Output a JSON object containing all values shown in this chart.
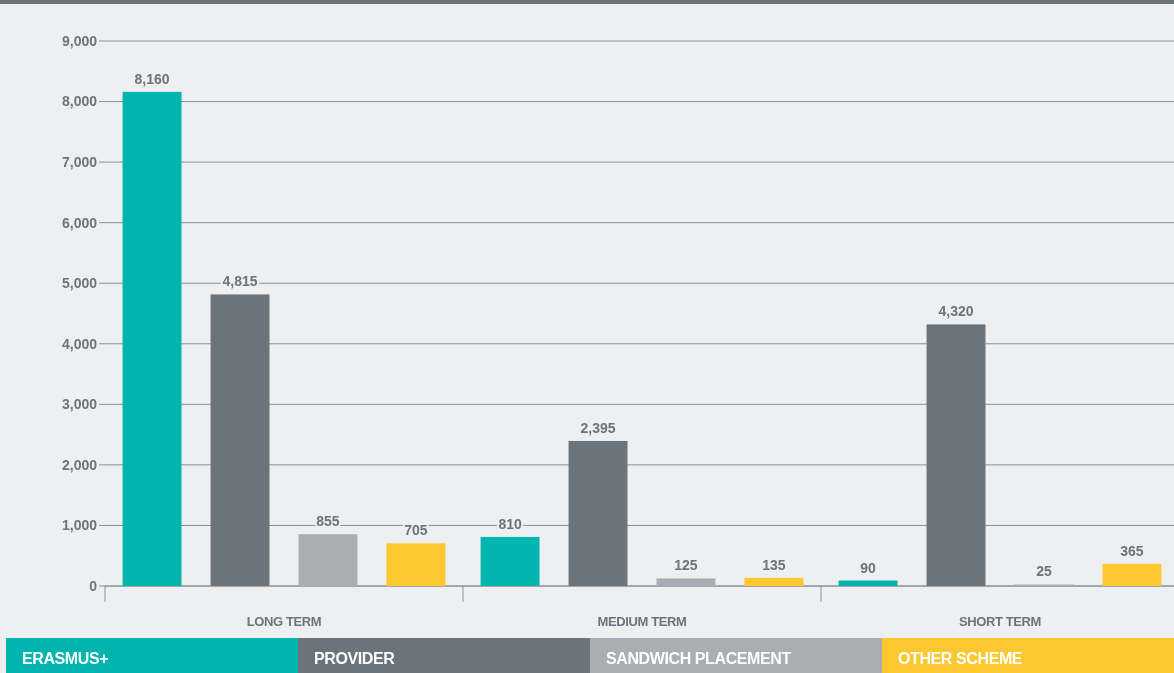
{
  "chart_data": {
    "type": "bar",
    "categories": [
      "LONG TERM",
      "MEDIUM TERM",
      "SHORT TERM"
    ],
    "series": [
      {
        "name": "ERASMUS+",
        "color": "#00b5ad",
        "values": [
          8160,
          810,
          90
        ],
        "value_labels": [
          "8,160",
          "810",
          "90"
        ]
      },
      {
        "name": "PROVIDER",
        "color": "#6b747b",
        "values": [
          4815,
          2395,
          4320
        ],
        "value_labels": [
          "4,815",
          "2,395",
          "4,320"
        ]
      },
      {
        "name": "SANDWICH PLACEMENT",
        "color": "#a8aeb4",
        "values": [
          855,
          125,
          25
        ],
        "value_labels": [
          "855",
          "125",
          "25"
        ]
      },
      {
        "name": "OTHER SCHEME",
        "color": "#fdc82f",
        "values": [
          705,
          135,
          365
        ],
        "value_labels": [
          "705",
          "135",
          "365"
        ]
      }
    ],
    "ylim": [
      0,
      9000
    ],
    "yticks": [
      {
        "value": 0,
        "label": "0"
      },
      {
        "value": 1000,
        "label": "1,000"
      },
      {
        "value": 2000,
        "label": "2,000"
      },
      {
        "value": 3000,
        "label": "3,000"
      },
      {
        "value": 4000,
        "label": "4,000"
      },
      {
        "value": 5000,
        "label": "5,000"
      },
      {
        "value": 6000,
        "label": "6,000"
      },
      {
        "value": 7000,
        "label": "7,000"
      },
      {
        "value": 8000,
        "label": "8,000"
      },
      {
        "value": 9000,
        "label": "9,000"
      }
    ],
    "grid": "y",
    "legend": "bottom"
  }
}
